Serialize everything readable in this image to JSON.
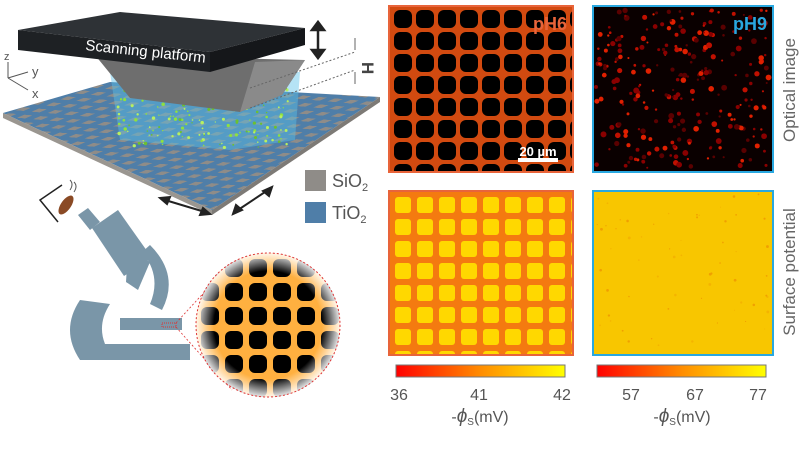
{
  "schematic": {
    "platform_label": "Scanning platform",
    "gap_label": "H",
    "axes": {
      "z": "z",
      "y": "y",
      "x": "x"
    },
    "legend": [
      {
        "label": "SiO",
        "sub": "2",
        "color": "#8f8c88"
      },
      {
        "label": "TiO",
        "sub": "2",
        "color": "#4f7ea8"
      }
    ]
  },
  "panels": {
    "ph6_label": "pH6",
    "ph9_label": "pH9",
    "ph6_color": "#e8643a",
    "ph9_color": "#29a8e0",
    "scale_bar": "20 µm",
    "row_labels": [
      "Optical image",
      "Surface potential"
    ]
  },
  "colorbars": [
    {
      "ticks": [
        "36",
        "41",
        "42"
      ],
      "label_prefix": "-",
      "symbol": "ϕ",
      "sub": "S",
      "unit": "(mV)",
      "colors": [
        "#ff0000",
        "#ff8c00",
        "#ffff00"
      ]
    },
    {
      "ticks": [
        "57",
        "67",
        "77"
      ],
      "label_prefix": "-",
      "symbol": "ϕ",
      "sub": "S",
      "unit": "(mV)",
      "colors": [
        "#ff0000",
        "#ff8c00",
        "#ffff00"
      ]
    }
  ]
}
